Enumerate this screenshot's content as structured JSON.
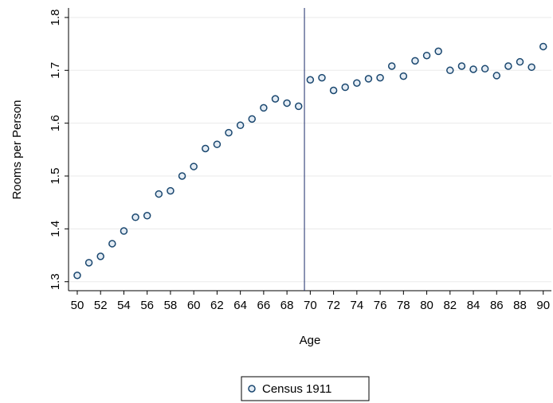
{
  "chart_data": {
    "type": "scatter",
    "x_label": "Age",
    "y_label": "Rooms per Person",
    "x": [
      50,
      51,
      52,
      53,
      54,
      55,
      56,
      57,
      58,
      59,
      60,
      61,
      62,
      63,
      64,
      65,
      66,
      67,
      68,
      69,
      70,
      71,
      72,
      73,
      74,
      75,
      76,
      77,
      78,
      79,
      80,
      81,
      82,
      83,
      84,
      85,
      86,
      87,
      88,
      89,
      90
    ],
    "series": [
      {
        "name": "Census 1911",
        "color": "#1a476f",
        "values": [
          1.312,
          1.336,
          1.348,
          1.372,
          1.396,
          1.422,
          1.425,
          1.466,
          1.472,
          1.5,
          1.518,
          1.552,
          1.56,
          1.582,
          1.596,
          1.608,
          1.629,
          1.646,
          1.638,
          1.632,
          1.682,
          1.686,
          1.662,
          1.668,
          1.676,
          1.684,
          1.686,
          1.708,
          1.689,
          1.718,
          1.728,
          1.736,
          1.7,
          1.708,
          1.702,
          1.703,
          1.69,
          1.708,
          1.716,
          1.706,
          1.745
        ]
      }
    ],
    "reference_line_x": 69.5,
    "xlim": [
      49.25,
      90.7
    ],
    "xticks": [
      50,
      52,
      54,
      56,
      58,
      60,
      62,
      64,
      66,
      68,
      70,
      72,
      74,
      76,
      78,
      80,
      82,
      84,
      86,
      88,
      90
    ],
    "ylim": [
      1.283,
      1.818
    ],
    "yticks": [
      1.3,
      1.4,
      1.5,
      1.6,
      1.7,
      1.8
    ],
    "grid": true,
    "legend": "bottom"
  }
}
